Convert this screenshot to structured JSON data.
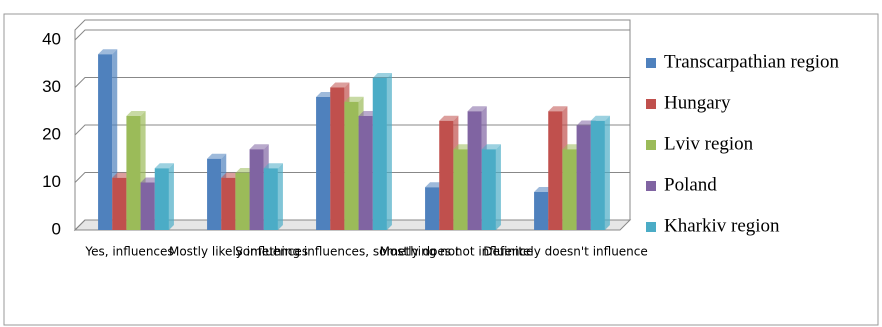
{
  "chart_data": {
    "type": "bar",
    "categories": [
      "Yes, influences",
      "Mostly likely influences",
      "Something influences, something not",
      "Mostly does not influence",
      "Definitely doesn't influence"
    ],
    "series": [
      {
        "name": "Transcarpathian region",
        "color": "#4f81bd",
        "values": [
          37,
          15,
          28,
          9,
          8
        ]
      },
      {
        "name": "Hungary",
        "color": "#c0504d",
        "values": [
          11,
          11,
          30,
          23,
          25
        ]
      },
      {
        "name": "Lviv region",
        "color": "#9bbb59",
        "values": [
          24,
          12,
          27,
          17,
          17
        ]
      },
      {
        "name": "Poland",
        "color": "#8064a2",
        "values": [
          10,
          17,
          24,
          25,
          22
        ]
      },
      {
        "name": "Kharkiv region",
        "color": "#4bacc6",
        "values": [
          13,
          13,
          32,
          17,
          23
        ]
      }
    ],
    "ylim": [
      0,
      40
    ],
    "yticks": [
      0,
      10,
      20,
      30,
      40
    ],
    "grid": true,
    "legend": "right"
  }
}
